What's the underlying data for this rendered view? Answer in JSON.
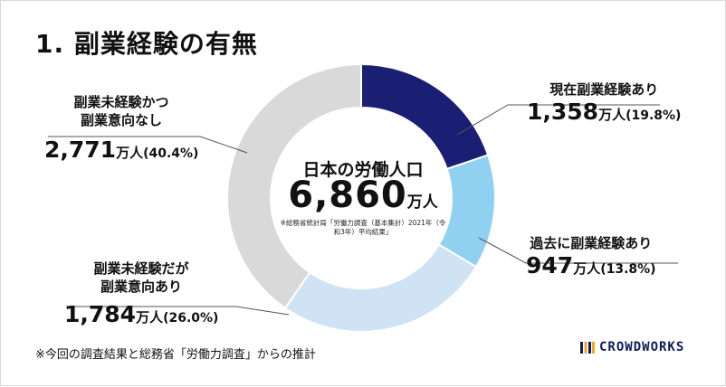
{
  "title": "1. 副業経験の有無",
  "chart_data": {
    "type": "pie",
    "donut": true,
    "center": {
      "title": "日本の労働人口",
      "value": "6,860",
      "unit": "万人",
      "note": "※総務省統計局「労働力調査（基本集計）2021年（令和3年）平均結果」"
    },
    "categories": [
      "現在副業経験あり",
      "過去に副業経験あり",
      "副業未経験だが副業意向あり",
      "副業未経験かつ副業意向なし"
    ],
    "values": [
      1358,
      947,
      1784,
      2771
    ],
    "percents": [
      19.8,
      13.8,
      26.0,
      40.4
    ],
    "slices": [
      {
        "name_lines": [
          "現在副業経験あり"
        ],
        "value": "1,358",
        "unit": "万人",
        "pct": "(19.8%)",
        "color": "#1b1f74"
      },
      {
        "name_lines": [
          "過去に副業経験あり"
        ],
        "value": "947",
        "unit": "万人",
        "pct": "(13.8%)",
        "color": "#90d1f2"
      },
      {
        "name_lines": [
          "副業未経験だが",
          "副業意向あり"
        ],
        "value": "1,784",
        "unit": "万人",
        "pct": "(26.0%)",
        "color": "#cfe3f4"
      },
      {
        "name_lines": [
          "副業未経験かつ",
          "副業意向なし"
        ],
        "value": "2,771",
        "unit": "万人",
        "pct": "(40.4%)",
        "color": "#d9d9d9"
      }
    ]
  },
  "footnote": "※今回の調査結果と総務省「労働力調査」からの推計",
  "logo": {
    "text": "CROWDWORKS",
    "color": "#0e1b5c"
  }
}
